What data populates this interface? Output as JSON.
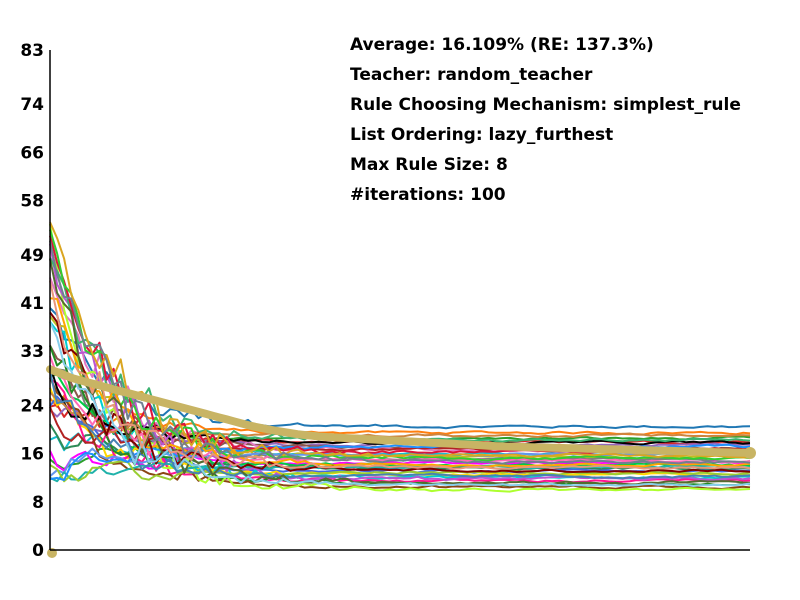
{
  "info": {
    "average": "Average: 16.109% (RE: 137.3%)",
    "teacher": "Teacher: random_teacher",
    "rule_mechanism": "Rule Choosing Mechanism: simplest_rule",
    "list_ordering": "List Ordering: lazy_furthest",
    "max_rule_size": "Max Rule Size: 8",
    "iterations": "#iterations: 100"
  },
  "chart_data": {
    "type": "line",
    "title": "",
    "xlabel": "",
    "ylabel": "",
    "ylim": [
      0,
      83
    ],
    "y_ticks": [
      0,
      8,
      16,
      24,
      33,
      41,
      49,
      58,
      66,
      74,
      83
    ],
    "x_ticks": [],
    "grid": false,
    "legend": "none",
    "x_points": 100,
    "average_line": {
      "color": "#c8b464",
      "values": [
        30,
        28.5,
        27.5,
        26.5,
        25.5,
        24.5,
        23.5,
        22.5,
        21.5,
        20.5,
        19.8,
        19.2,
        18.8,
        18.6,
        18.4,
        18.2,
        18.0,
        17.8,
        17.6,
        17.4,
        17.2,
        17.1,
        17.0,
        16.9,
        16.8,
        16.7,
        16.6,
        16.5,
        16.4,
        16.3,
        16.2,
        16.1
      ]
    },
    "series_colors": [
      "#1f77b4",
      "#ff7f0e",
      "#2ca02c",
      "#d62728",
      "#9467bd",
      "#8c564b",
      "#e377c2",
      "#17becf",
      "#bcbd22",
      "#7f7f7f",
      "#ff00ff",
      "#00cc44",
      "#2e8b57",
      "#4169e1",
      "#ffd700",
      "#00ced1",
      "#ff1493",
      "#228b22",
      "#8b4513",
      "#adff2f",
      "#000000",
      "#b22222",
      "#6495ed",
      "#ff69b4",
      "#20b2aa",
      "#9acd32",
      "#ba55d3",
      "#cd853f",
      "#3cb371",
      "#1e90ff",
      "#dc143c",
      "#32cd32",
      "#ffa500",
      "#800000",
      "#4682b4",
      "#556b2f",
      "#87ceeb",
      "#daa520",
      "#708090",
      "#e9967a"
    ],
    "series_finals": [
      20.5,
      19.5,
      18.5,
      18,
      17.5,
      17,
      16.5,
      16,
      15.5,
      15,
      14.5,
      14,
      13.5,
      13,
      12.5,
      12,
      11.5,
      11,
      10.5,
      10,
      17.8,
      16.8,
      15.8,
      14.8,
      13.8,
      12.8,
      11.8,
      19.0,
      18.2,
      17.2,
      16.2,
      15.2,
      14.2,
      13.2,
      12.2,
      11.2,
      10.8,
      15.6,
      14.6,
      13.6
    ]
  }
}
